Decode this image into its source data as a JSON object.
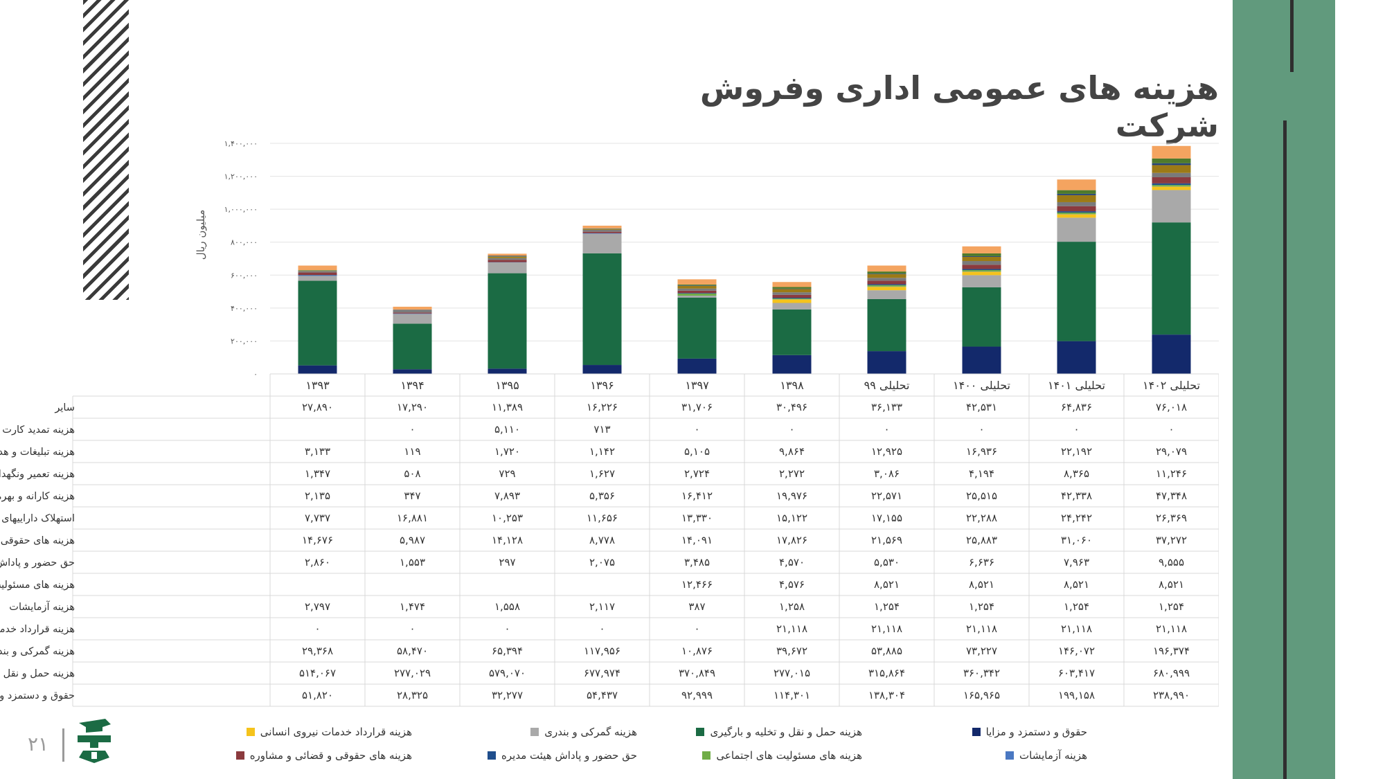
{
  "title": "هزینه های عمومی اداری وفروش شرکت",
  "page_number": "۲۱",
  "chart_data": {
    "type": "bar",
    "stacked": true,
    "ylabel": "میلیون ریال",
    "ylim": [
      0,
      1400000
    ],
    "yticks": [
      0,
      200000,
      400000,
      600000,
      800000,
      1000000,
      1200000,
      1400000
    ],
    "ytick_labels": [
      "۰",
      "۲۰۰,۰۰۰",
      "۴۰۰,۰۰۰",
      "۶۰۰,۰۰۰",
      "۸۰۰,۰۰۰",
      "۱,۰۰۰,۰۰۰",
      "۱,۲۰۰,۰۰۰",
      "۱,۴۰۰,۰۰۰"
    ],
    "grid": true,
    "legend_position": "bottom",
    "categories": [
      "۱۳۹۳",
      "۱۳۹۴",
      "۱۳۹۵",
      "۱۳۹۶",
      "۱۳۹۷",
      "۱۳۹۸",
      "تحلیلی ۹۹",
      "تحلیلی ۱۴۰۰",
      "تحلیلی ۱۴۰۱",
      "تحلیلی ۱۴۰۲"
    ],
    "series": [
      {
        "name": "حقوق و دستمزد و مزایا",
        "color": "#13296b",
        "values": [
          51820,
          28325,
          32277,
          54437,
          92999,
          114301,
          138304,
          165965,
          199158,
          238990
        ],
        "labels": [
          "۵۱,۸۲۰",
          "۲۸,۳۲۵",
          "۳۲,۲۷۷",
          "۵۴,۴۳۷",
          "۹۲,۹۹۹",
          "۱۱۴,۳۰۱",
          "۱۳۸,۳۰۴",
          "۱۶۵,۹۶۵",
          "۱۹۹,۱۵۸",
          "۲۳۸,۹۹۰"
        ]
      },
      {
        "name": "هزینه حمل و نقل و تخلیه و بارگیری",
        "color": "#1b6b44",
        "values": [
          514067,
          277029,
          579070,
          677974,
          370849,
          277015,
          315864,
          360342,
          603417,
          680999
        ],
        "labels": [
          "۵۱۴,۰۶۷",
          "۲۷۷,۰۲۹",
          "۵۷۹,۰۷۰",
          "۶۷۷,۹۷۴",
          "۳۷۰,۸۴۹",
          "۲۷۷,۰۱۵",
          "۳۱۵,۸۶۴",
          "۳۶۰,۳۴۲",
          "۶۰۳,۴۱۷",
          "۶۸۰,۹۹۹"
        ]
      },
      {
        "name": "هزینه گمرکی و بندری",
        "color": "#a9a9a9",
        "values": [
          29368,
          58470,
          65394,
          117956,
          10876,
          39672,
          53885,
          73227,
          146072,
          196374
        ],
        "labels": [
          "۲۹,۳۶۸",
          "۵۸,۴۷۰",
          "۶۵,۳۹۴",
          "۱۱۷,۹۵۶",
          "۱۰,۸۷۶",
          "۳۹,۶۷۲",
          "۵۳,۸۸۵",
          "۷۳,۲۲۷",
          "۱۴۶,۰۷۲",
          "۱۹۶,۳۷۴"
        ]
      },
      {
        "name": "هزینه قرارداد خدمات نیروی انسانی",
        "color": "#f5c31c",
        "values": [
          0,
          0,
          0,
          0,
          0,
          21118,
          21118,
          21118,
          21118,
          21118
        ],
        "labels": [
          "۰",
          "۰",
          "۰",
          "۰",
          "۰",
          "۲۱,۱۱۸",
          "۲۱,۱۱۸",
          "۲۱,۱۱۸",
          "۲۱,۱۱۸",
          "۲۱,۱۱۸"
        ]
      },
      {
        "name": "هزینه آزمایشات",
        "color": "#4a78c2",
        "values": [
          2797,
          1474,
          1558,
          2117,
          387,
          1258,
          1254,
          1254,
          1254,
          1254
        ],
        "labels": [
          "۲,۷۹۷",
          "۱,۴۷۴",
          "۱,۵۵۸",
          "۲,۱۱۷",
          "۳۸۷",
          "۱,۲۵۸",
          "۱,۲۵۴",
          "۱,۲۵۴",
          "۱,۲۵۴",
          "۱,۲۵۴"
        ]
      },
      {
        "name": "هزینه های مسئولیت های اجتماعی",
        "color": "#70ad47",
        "values": [
          null,
          null,
          null,
          null,
          12466,
          4576,
          8521,
          8521,
          8521,
          8521
        ],
        "labels": [
          "",
          "",
          "",
          "",
          "۱۲,۴۶۶",
          "۴,۵۷۶",
          "۸,۵۲۱",
          "۸,۵۲۱",
          "۸,۵۲۱",
          "۸,۵۲۱"
        ]
      },
      {
        "name": "حق حضور و پاداش هیئت مدیره",
        "color": "#1f4e8c",
        "values": [
          2860,
          1553,
          297,
          2075,
          3485,
          4570,
          5530,
          6636,
          7963,
          9555
        ],
        "labels": [
          "۲,۸۶۰",
          "۱,۵۵۳",
          "۲۹۷",
          "۲,۰۷۵",
          "۳,۴۸۵",
          "۴,۵۷۰",
          "۵,۵۳۰",
          "۶,۶۳۶",
          "۷,۹۶۳",
          "۹,۵۵۵"
        ]
      },
      {
        "name": "هزینه های حقوقی و قضائی و مشاوره",
        "color": "#8b3a3e",
        "values": [
          14676,
          5987,
          14128,
          8778,
          14091,
          17826,
          21569,
          25883,
          31060,
          37272
        ],
        "labels": [
          "۱۴,۶۷۶",
          "۵,۹۸۷",
          "۱۴,۱۲۸",
          "۸,۷۷۸",
          "۱۴,۰۹۱",
          "۱۷,۸۲۶",
          "۲۱,۵۶۹",
          "۲۵,۸۸۳",
          "۳۱,۰۶۰",
          "۳۷,۲۷۲"
        ]
      },
      {
        "name": "استهلاک داراییهای ثابت مشهود و نامشهود",
        "color": "#7a7a7a",
        "values": [
          7737,
          16881,
          10253,
          11656,
          13330,
          15122,
          17155,
          22288,
          24242,
          26369
        ],
        "labels": [
          "۷,۷۳۷",
          "۱۶,۸۸۱",
          "۱۰,۲۵۳",
          "۱۱,۶۵۶",
          "۱۳,۳۳۰",
          "۱۵,۱۲۲",
          "۱۷,۱۵۵",
          "۲۲,۲۸۸",
          "۲۴,۲۴۲",
          "۲۶,۳۶۹"
        ]
      },
      {
        "name": "هزینه کارانه و بهره برداری",
        "color": "#9c7a16",
        "values": [
          2135,
          347,
          7893,
          5356,
          16412,
          19976,
          22571,
          25515,
          42338,
          47348
        ],
        "labels": [
          "۲,۱۳۵",
          "۳۴۷",
          "۷,۸۹۳",
          "۵,۳۵۶",
          "۱۶,۴۱۲",
          "۱۹,۹۷۶",
          "۲۲,۵۷۱",
          "۲۵,۵۱۵",
          "۴۲,۳۳۸",
          "۴۷,۳۴۸"
        ]
      },
      {
        "name": "هزینه تعمیر ونگهداری",
        "color": "#264478",
        "values": [
          1347,
          508,
          729,
          1627,
          2724,
          2272,
          3086,
          4194,
          8365,
          11246
        ],
        "labels": [
          "۱,۳۴۷",
          "۵۰۸",
          "۷۲۹",
          "۱,۶۲۷",
          "۲,۷۲۴",
          "۲,۲۷۲",
          "۳,۰۸۶",
          "۴,۱۹۴",
          "۸,۳۶۵",
          "۱۱,۲۴۶"
        ]
      },
      {
        "name": "هزینه تبلیغات و هدایا",
        "color": "#4f7a2c",
        "values": [
          3133,
          119,
          1720,
          1142,
          5105,
          9864,
          12925,
          16936,
          22192,
          29079
        ],
        "labels": [
          "۳,۱۳۳",
          "۱۱۹",
          "۱,۷۲۰",
          "۱,۱۴۲",
          "۵,۱۰۵",
          "۹,۸۶۴",
          "۱۲,۹۲۵",
          "۱۶,۹۳۶",
          "۲۲,۱۹۲",
          "۲۹,۰۷۹"
        ]
      },
      {
        "name": "هزینه تمدید کارت بازرگانی",
        "color": "#555555",
        "values": [
          null,
          0,
          5110,
          713,
          0,
          0,
          0,
          0,
          0,
          0
        ],
        "labels": [
          "",
          "۰",
          "۵,۱۱۰",
          "۷۱۳",
          "۰",
          "۰",
          "۰",
          "۰",
          "۰",
          "۰"
        ]
      },
      {
        "name": "سایر",
        "color": "#f4a460",
        "values": [
          27890,
          17290,
          11389,
          16226,
          31706,
          30496,
          36133,
          42531,
          64836,
          76018
        ],
        "labels": [
          "۲۷,۸۹۰",
          "۱۷,۲۹۰",
          "۱۱,۳۸۹",
          "۱۶,۲۲۶",
          "۳۱,۷۰۶",
          "۳۰,۴۹۶",
          "۳۶,۱۳۳",
          "۴۲,۵۳۱",
          "۶۴,۸۳۶",
          "۷۶,۰۱۸"
        ]
      }
    ],
    "table_row_order": [
      "سایر",
      "هزینه تمدید کارت بازرگانی",
      "هزینه تبلیغات و هدایا",
      "هزینه تعمیر ونگهداری",
      "هزینه کارانه و بهره برداری",
      "استهلاک داراییهای ثابت مشهود و نامشهود",
      "هزینه های حقوقی و قضائی و مشاوره",
      "حق حضور و پاداش هیئت مدیره",
      "هزینه های مسئولیت های اجتماعی",
      "هزینه آزمایشات",
      "هزینه قرارداد خدمات نیروی انسانی",
      "هزینه گمرکی و بندری",
      "هزینه حمل و نقل و تخلیه و بارگیری",
      "حقوق و دستمزد و مزایا"
    ],
    "legend_entries": [
      "حقوق و دستمزد و مزایا",
      "هزینه حمل و نقل و تخلیه و بارگیری",
      "هزینه گمرکی و بندری",
      "هزینه قرارداد خدمات نیروی انسانی",
      "هزینه آزمایشات",
      "هزینه های مسئولیت های اجتماعی",
      "حق حضور و پاداش هیئت مدیره",
      "هزینه های حقوقی و قضائی و مشاوره"
    ]
  }
}
